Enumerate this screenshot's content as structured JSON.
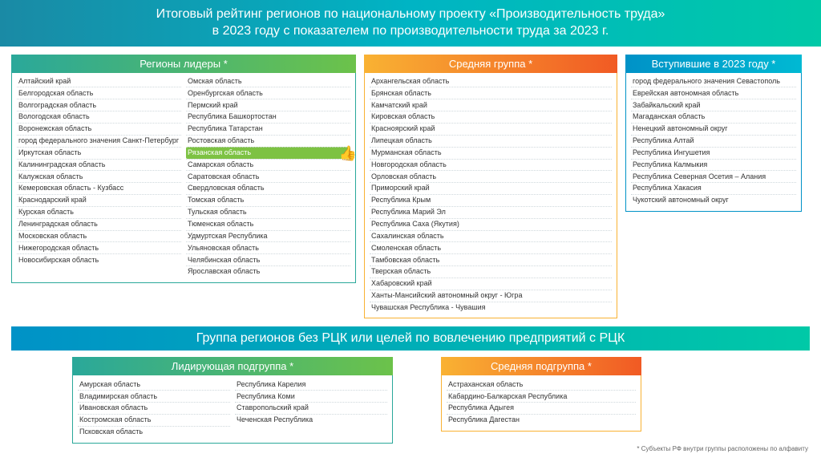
{
  "colors": {
    "banner_gradient": [
      "#1a8aa5",
      "#00b4c4",
      "#00c9a7"
    ],
    "leaders_gradient": [
      "#2aa89a",
      "#6cc24a"
    ],
    "middle_gradient": [
      "#f9b233",
      "#f15a24"
    ],
    "new_gradient": [
      "#0092c7",
      "#00b9d3"
    ],
    "highlight_bg": "#7dc243",
    "text": "#333333",
    "background": "#ffffff"
  },
  "banner1_line1": "Итоговый рейтинг регионов по национальному проекту «Производительность труда»",
  "banner1_line2": "в 2023 году с показателем по производительности труда за 2023 г.",
  "banner2": "Группа регионов без РЦК или целей по вовлечению предприятий с РЦК",
  "footnote": "* Субъекты РФ внутри группы расположены по алфавиту",
  "leaders": {
    "title": "Регионы лидеры *",
    "col1": [
      "Алтайский край",
      "Белгородская область",
      "Волгоградская область",
      "Вологодская область",
      "Воронежская область",
      "город федерального значения Санкт-Петербург",
      "Иркутская область",
      "Калининградская область",
      "Калужская область",
      "Кемеровская область - Кузбасс",
      "Краснодарский край",
      "Курская область",
      "Ленинградская область",
      "Московская область",
      "Нижегородская область",
      "Новосибирская область"
    ],
    "col2": [
      "Омская область",
      "Оренбургская область",
      "Пермский край",
      "Республика Башкортостан",
      "Республика Татарстан",
      "Ростовская область",
      "Рязанская область",
      "Самарская область",
      "Саратовская область",
      "Свердловская область",
      "Томская область",
      "Тульская область",
      "Тюменская область",
      "Удмуртская Республика",
      "Ульяновская область",
      "Челябинская область",
      "Ярославская область"
    ],
    "highlight_index": 6
  },
  "middle": {
    "title": "Средняя группа *",
    "col1": [
      "Архангельская область",
      "Брянская область",
      "Камчатский край",
      "Кировская область",
      "Красноярский край",
      "Липецкая область",
      "Мурманская область",
      "Новгородская область",
      "Орловская область",
      "Приморский край",
      "Республика Крым",
      "Республика Марий Эл",
      "Республика Саха (Якутия)",
      "Сахалинская область",
      "Смоленская область",
      "Тамбовская область",
      "Тверская область",
      "Хабаровский край",
      "Ханты-Мансийский автономный округ - Югра",
      "Чувашская Республика - Чувашия"
    ]
  },
  "new2023": {
    "title": "Вступившие в 2023 году *",
    "col1": [
      "город федерального значения Севастополь",
      "Еврейская автономная область",
      "Забайкальский край",
      "Магаданская область",
      "Ненецкий автономный округ",
      "Республика Алтай",
      "Республика Ингушетия",
      "Республика Калмыкия",
      "Республика Северная Осетия – Алания",
      "Республика Хакасия",
      "Чукотский автономный округ"
    ]
  },
  "sub_lead": {
    "title": "Лидирующая подгруппа *",
    "col1": [
      "Амурская область",
      "Владимирская область",
      "Ивановская область",
      "Костромская область",
      "Псковская область"
    ],
    "col2": [
      "Республика Карелия",
      "Республика Коми",
      "Ставропольский край",
      "Чеченская Республика"
    ]
  },
  "sub_mid": {
    "title": "Средняя подгруппа *",
    "col1": [
      "Астраханская область",
      "Кабардино-Балкарская Республика",
      "Республика Адыгея",
      "Республика Дагестан"
    ]
  }
}
